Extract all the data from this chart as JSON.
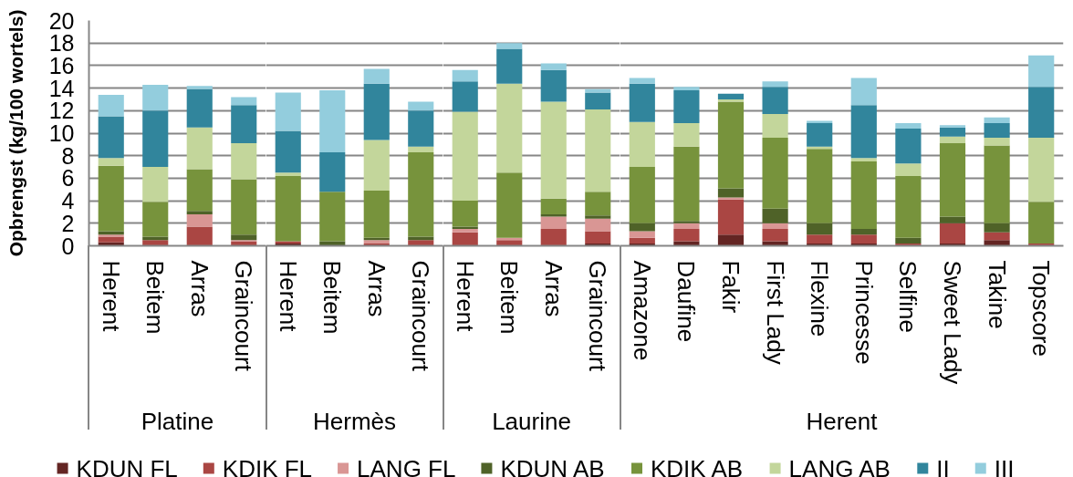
{
  "chart_data": [
    {
      "type": "bar",
      "stacked": true,
      "xlabel": "Platine",
      "ylabel": "Opbrengst (kg/100 wortels)",
      "categories": [
        "Herent",
        "Beitem",
        "Arras",
        "Graincourt"
      ],
      "ylim": [
        0,
        20
      ],
      "yticks": [
        0,
        2,
        4,
        6,
        8,
        10,
        12,
        14,
        16,
        18,
        20
      ],
      "grid": "y",
      "legend": "bottom",
      "series": [
        {
          "name": "KDUN FL",
          "color": "#632523",
          "values": [
            0.3,
            null,
            null,
            null
          ]
        },
        {
          "name": "KDIK FL",
          "color": "#aa4643",
          "values": [
            0.5,
            0.5,
            1.7,
            0.4
          ]
        },
        {
          "name": "LANG FL",
          "color": "#d99694",
          "values": [
            0.2,
            null,
            1.1,
            0.1
          ]
        },
        {
          "name": "KDUN AB",
          "color": "#4f6228",
          "values": [
            0.3,
            0.3,
            0.3,
            0.5
          ]
        },
        {
          "name": "KDIK AB",
          "color": "#77933c",
          "values": [
            5.8,
            3.1,
            3.7,
            4.9
          ]
        },
        {
          "name": "LANG AB",
          "color": "#c3d69b",
          "values": [
            0.7,
            3.1,
            3.7,
            3.2
          ]
        },
        {
          "name": "II",
          "color": "#31859c",
          "values": [
            3.7,
            5.0,
            3.4,
            3.4
          ]
        },
        {
          "name": "III",
          "color": "#93cddd",
          "values": [
            1.9,
            2.3,
            0.3,
            0.7
          ]
        }
      ]
    },
    {
      "type": "bar",
      "stacked": true,
      "xlabel": "Hermès",
      "categories": [
        "Herent",
        "Beitem",
        "Arras",
        "Graincourt"
      ],
      "ylim": [
        0,
        20
      ],
      "yticks": [
        0,
        2,
        4,
        6,
        8,
        10,
        12,
        14,
        16,
        18,
        20
      ],
      "grid": "y",
      "tick_labels": "x",
      "series": [
        {
          "color": "#632523",
          "values": [
            0.2,
            null,
            null,
            null
          ]
        },
        {
          "color": "#aa4643",
          "values": [
            0.2,
            null,
            0.2,
            0.5
          ]
        },
        {
          "color": "#d99694",
          "values": [
            null,
            null,
            0.3,
            null
          ]
        },
        {
          "color": "#4f6228",
          "values": [
            null,
            0.4,
            0.2,
            0.3
          ]
        },
        {
          "color": "#77933c",
          "values": [
            5.8,
            4.4,
            4.2,
            7.5
          ]
        },
        {
          "color": "#c3d69b",
          "values": [
            0.3,
            null,
            4.5,
            0.5
          ]
        },
        {
          "color": "#31859c",
          "values": [
            3.7,
            3.5,
            5.0,
            3.2
          ]
        },
        {
          "color": "#93cddd",
          "values": [
            3.4,
            5.5,
            1.3,
            0.8
          ]
        }
      ]
    },
    {
      "type": "bar",
      "stacked": true,
      "xlabel": "Laurine",
      "categories": [
        "Herent",
        "Beitem",
        "Arras",
        "Graincourt"
      ],
      "ylim": [
        0,
        20
      ],
      "yticks": [
        0,
        2,
        4,
        6,
        8,
        10,
        12,
        14,
        16,
        18,
        20
      ],
      "grid": "y",
      "tick_labels": "x",
      "series": [
        {
          "color": "#632523",
          "values": [
            null,
            null,
            null,
            0.2
          ]
        },
        {
          "color": "#aa4643",
          "values": [
            1.2,
            0.5,
            1.5,
            1.1
          ]
        },
        {
          "color": "#d99694",
          "values": [
            0.3,
            0.2,
            1.1,
            1.1
          ]
        },
        {
          "color": "#4f6228",
          "values": [
            0.2,
            null,
            0.2,
            0.3
          ]
        },
        {
          "color": "#77933c",
          "values": [
            2.3,
            5.8,
            1.4,
            2.1
          ]
        },
        {
          "color": "#c3d69b",
          "values": [
            7.9,
            7.9,
            8.6,
            7.3
          ]
        },
        {
          "color": "#31859c",
          "values": [
            2.7,
            3.1,
            2.8,
            1.5
          ]
        },
        {
          "color": "#93cddd",
          "values": [
            1.0,
            0.5,
            0.6,
            0.3
          ]
        }
      ]
    },
    {
      "type": "bar",
      "stacked": true,
      "xlabel": "Herent",
      "categories": [
        "Amazone",
        "Daufine",
        "Fakir",
        "First Lady",
        "Flexine",
        "Princesse",
        "Selfine",
        "Sweet Lady",
        "Takine",
        "Topscore"
      ],
      "ylim": [
        0,
        20
      ],
      "yticks": [
        0,
        2,
        4,
        6,
        8,
        10,
        12,
        14,
        16,
        18,
        20
      ],
      "grid": "y",
      "tick_labels": "x",
      "series": [
        {
          "color": "#632523",
          "values": [
            0.2,
            0.4,
            1.0,
            0.4,
            0.2,
            0.2,
            null,
            0.2,
            0.5,
            null
          ]
        },
        {
          "color": "#aa4643",
          "values": [
            0.5,
            1.1,
            3.1,
            1.1,
            0.8,
            0.8,
            0.2,
            1.8,
            0.7,
            0.2
          ]
        },
        {
          "color": "#d99694",
          "values": [
            0.6,
            0.5,
            0.2,
            0.5,
            null,
            null,
            null,
            null,
            null,
            null
          ]
        },
        {
          "color": "#4f6228",
          "values": [
            0.7,
            0.2,
            0.8,
            1.3,
            1.0,
            0.5,
            0.5,
            0.6,
            0.8,
            null
          ]
        },
        {
          "color": "#77933c",
          "values": [
            5.0,
            6.6,
            7.7,
            6.3,
            6.6,
            6.0,
            5.5,
            6.5,
            6.9,
            3.7
          ]
        },
        {
          "color": "#c3d69b",
          "values": [
            4.0,
            2.1,
            0.2,
            2.1,
            0.2,
            0.3,
            1.1,
            0.6,
            0.7,
            5.7
          ]
        },
        {
          "color": "#31859c",
          "values": [
            3.4,
            2.9,
            0.5,
            2.4,
            2.1,
            4.7,
            3.1,
            0.8,
            1.3,
            4.5
          ]
        },
        {
          "color": "#93cddd",
          "values": [
            0.5,
            0.3,
            null,
            0.5,
            0.2,
            2.4,
            0.5,
            0.2,
            0.5,
            2.8
          ]
        }
      ]
    }
  ]
}
